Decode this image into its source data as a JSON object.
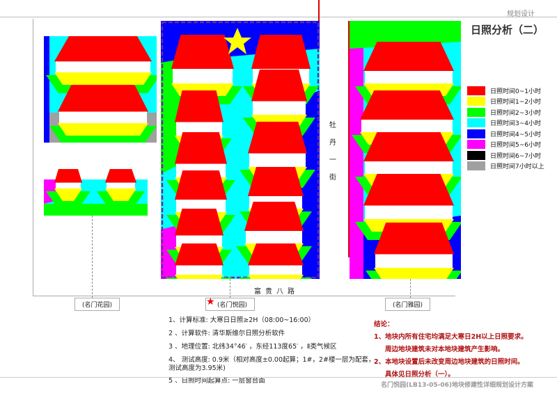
{
  "header": {
    "section": "规划设计",
    "title": "日照分析（二）"
  },
  "legend": [
    {
      "label": "日照时间0~1小时",
      "color": "#ff0000"
    },
    {
      "label": "日照时间1~2小时",
      "color": "#ffff00"
    },
    {
      "label": "日照时间2~3小时",
      "color": "#00ff00"
    },
    {
      "label": "日照时间3~4小时",
      "color": "#00ffff"
    },
    {
      "label": "日照时间4~5小时",
      "color": "#0000ff"
    },
    {
      "label": "日照时间5~6小时",
      "color": "#ff00ff"
    },
    {
      "label": "日照时间6~7小时",
      "color": "#000000"
    },
    {
      "label": "日照时间7小时以上",
      "color": "#a0a0a0"
    }
  ],
  "map": {
    "street": "牡丹一街",
    "road": "富贵八路",
    "labels": {
      "left": "(名门花园)",
      "center": "(名门悦园)",
      "right": "(名门雅园)"
    }
  },
  "notes": [
    "1、计算标准: 大寒日日照≥2H（08:00~16:00）",
    "2 、计算软件: 清华斯维尔日照分析软件",
    "3 、地理位置: 北纬34°46′ ，东经113度65′ ，Ⅱ类气候区",
    "4、 测试高度: 0.9米（相对高度±0.00起算；1#，2#楼一层为配套，",
    "测试高度为3.95米)",
    "5 、日照时间起算点: 一层窗台面"
  ],
  "conclusion": {
    "title": "结论：",
    "lines": [
      "1、地块内所有住宅均满足大寒日2H以上日照要求。",
      "周边地块建筑未对本地块建筑产生影响。",
      "2、本地块设置后未改变周边地块建筑的日照时间。",
      "具体见日照分析（一）。"
    ]
  },
  "footer": "名门悦园(LB13-05-06)地块修建性详细规划设计方案"
}
